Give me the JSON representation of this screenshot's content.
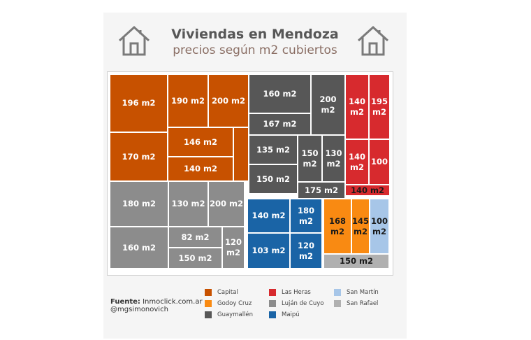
{
  "title": "Viviendas en Mendoza",
  "subtitle": "precios según m2 cubiertos",
  "source_label": "Fuente:",
  "source_value": "Inmoclick.com.ar",
  "author": "@mgsimonovich",
  "colors": {
    "Capital": "#c75100",
    "Las Heras": "#d72a2e",
    "San Martín": "#a7c6e8",
    "Godoy Cruz": "#f98a12",
    "Luján de Cuyo": "#8c8c8c",
    "San Rafael": "#b0b0b0",
    "Guaymallén": "#575757",
    "Maipú": "#1a64a6"
  },
  "legend": [
    {
      "name": "Capital"
    },
    {
      "name": "Godoy Cruz"
    },
    {
      "name": "Guaymallén"
    },
    {
      "name": "Las Heras"
    },
    {
      "name": "Luján de Cuyo"
    },
    {
      "name": "Maipú"
    },
    {
      "name": "San Martín"
    },
    {
      "name": "San Rafael"
    }
  ],
  "chart_data": {
    "type": "treemap",
    "title": "Viviendas en Mendoza",
    "subtitle": "precios según m2 cubiertos",
    "groups": [
      {
        "department": "Capital",
        "items": [
          {
            "label": "196 m2",
            "value": 196
          },
          {
            "label": "190 m2",
            "value": 190
          },
          {
            "label": "200 m2",
            "value": 200
          },
          {
            "label": "170 m2",
            "value": 170
          },
          {
            "label": "146 m2",
            "value": 146
          },
          {
            "label": "140 m2",
            "value": 140
          },
          {
            "label": "",
            "value": null
          }
        ]
      },
      {
        "department": "Guaymallén",
        "items": [
          {
            "label": "160 m2",
            "value": 160
          },
          {
            "label": "167 m2",
            "value": 167
          },
          {
            "label": "200 m2",
            "value": 200
          },
          {
            "label": "135 m2",
            "value": 135
          },
          {
            "label": "150\nm2",
            "value": 150
          },
          {
            "label": "130\nm2",
            "value": 130
          },
          {
            "label": "150 m2",
            "value": 150
          },
          {
            "label": "175 m2",
            "value": 175
          }
        ]
      },
      {
        "department": "Las Heras",
        "items": [
          {
            "label": "140\nm2",
            "value": 140
          },
          {
            "label": "195\nm2",
            "value": 195
          },
          {
            "label": "140\nm2",
            "value": 140
          },
          {
            "label": "100",
            "value": 100
          },
          {
            "label": "140 m2",
            "value": 140
          }
        ]
      },
      {
        "department": "Luján de Cuyo",
        "items": [
          {
            "label": "180 m2",
            "value": 180
          },
          {
            "label": "130 m2",
            "value": 130
          },
          {
            "label": "200 m2",
            "value": 200
          },
          {
            "label": "160 m2",
            "value": 160
          },
          {
            "label": "82 m2",
            "value": 82
          },
          {
            "label": "150 m2",
            "value": 150
          },
          {
            "label": "120\nm2",
            "value": 120
          }
        ]
      },
      {
        "department": "Maipú",
        "items": [
          {
            "label": "140 m2",
            "value": 140
          },
          {
            "label": "180 m2",
            "value": 180
          },
          {
            "label": "103 m2",
            "value": 103
          },
          {
            "label": "120 m2",
            "value": 120
          }
        ]
      },
      {
        "department": "Godoy Cruz",
        "items": [
          {
            "label": "168\nm2",
            "value": 168
          },
          {
            "label": "145\nm2",
            "value": 145
          }
        ]
      },
      {
        "department": "San Martín",
        "items": [
          {
            "label": "100\nm2",
            "value": 100
          }
        ]
      },
      {
        "department": "San Rafael",
        "items": [
          {
            "label": "150 m2",
            "value": 150
          }
        ]
      }
    ]
  }
}
